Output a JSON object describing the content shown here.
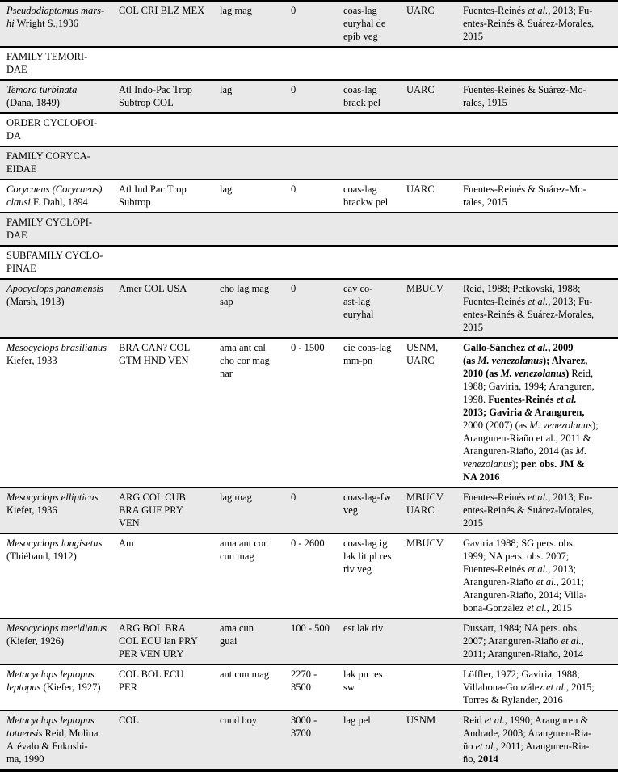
{
  "shade_color": "#e9e9e9",
  "border_color": "#000000",
  "table": {
    "rows": [
      {
        "kind": "species",
        "shaded": true,
        "species": [
          [
            {
              "t": "Pseudodiaptomus mars-",
              "s": "i"
            }
          ],
          [
            {
              "t": "hi",
              "s": "i"
            },
            {
              "t": " Wright S.,1936"
            }
          ]
        ],
        "distribution": [
          [
            {
              "t": "COL CRI BLZ MEX"
            }
          ]
        ],
        "codes": [
          [
            {
              "t": "lag mag"
            }
          ]
        ],
        "depth": [
          [
            {
              "t": "0"
            }
          ]
        ],
        "habitat": [
          [
            {
              "t": "coas-lag"
            }
          ],
          [
            {
              "t": "euryhal de"
            }
          ],
          [
            {
              "t": "epib veg"
            }
          ]
        ],
        "museum": [
          [
            {
              "t": "UARC"
            }
          ]
        ],
        "references": [
          [
            {
              "t": "Fuentes-Reinés "
            },
            {
              "t": "et al.",
              "s": "i"
            },
            {
              "t": ", 2013; Fu-"
            }
          ],
          [
            {
              "t": "entes-Reinés & Suárez-Morales,"
            }
          ],
          [
            {
              "t": "2015"
            }
          ]
        ]
      },
      {
        "kind": "group",
        "shaded": false,
        "label": [
          [
            {
              "t": "FAMILY TEMORI-"
            }
          ],
          [
            {
              "t": "DAE"
            }
          ]
        ]
      },
      {
        "kind": "species",
        "shaded": true,
        "species": [
          [
            {
              "t": "Temora turbinata",
              "s": "i"
            }
          ],
          [
            {
              "t": "(Dana, 1849)"
            }
          ]
        ],
        "distribution": [
          [
            {
              "t": "Atl Indo-Pac Trop"
            }
          ],
          [
            {
              "t": "Subtrop COL"
            }
          ]
        ],
        "codes": [
          [
            {
              "t": "lag"
            }
          ]
        ],
        "depth": [
          [
            {
              "t": "0"
            }
          ]
        ],
        "habitat": [
          [
            {
              "t": "coas-lag"
            }
          ],
          [
            {
              "t": "brack pel"
            }
          ]
        ],
        "museum": [
          [
            {
              "t": "UARC"
            }
          ]
        ],
        "references": [
          [
            {
              "t": "Fuentes-Reinés & Suárez-Mo-"
            }
          ],
          [
            {
              "t": "rales, 1915"
            }
          ]
        ]
      },
      {
        "kind": "group",
        "shaded": false,
        "label": [
          [
            {
              "t": "ORDER CYCLOPOI-"
            }
          ],
          [
            {
              "t": "DA"
            }
          ]
        ]
      },
      {
        "kind": "group",
        "shaded": true,
        "label": [
          [
            {
              "t": "FAMILY CORYCA-"
            }
          ],
          [
            {
              "t": "EIDAE"
            }
          ]
        ]
      },
      {
        "kind": "species",
        "shaded": false,
        "species": [
          [
            {
              "t": "Corycaeus (Corycaeus)",
              "s": "i"
            }
          ],
          [
            {
              "t": "clausi",
              "s": "i"
            },
            {
              "t": " F. Dahl, 1894"
            }
          ]
        ],
        "distribution": [
          [
            {
              "t": "Atl Ind Pac Trop"
            }
          ],
          [
            {
              "t": "Subtrop"
            }
          ]
        ],
        "codes": [
          [
            {
              "t": "lag"
            }
          ]
        ],
        "depth": [
          [
            {
              "t": "0"
            }
          ]
        ],
        "habitat": [
          [
            {
              "t": "coas-lag"
            }
          ],
          [
            {
              "t": "brackw pel"
            }
          ]
        ],
        "museum": [
          [
            {
              "t": "UARC"
            }
          ]
        ],
        "references": [
          [
            {
              "t": "Fuentes-Reinés & Suárez-Mo-"
            }
          ],
          [
            {
              "t": "rales, 2015"
            }
          ]
        ]
      },
      {
        "kind": "group",
        "shaded": true,
        "label": [
          [
            {
              "t": "FAMILY CYCLOPI-"
            }
          ],
          [
            {
              "t": "DAE"
            }
          ]
        ]
      },
      {
        "kind": "group",
        "shaded": false,
        "label": [
          [
            {
              "t": "SUBFAMILY CYCLO-"
            }
          ],
          [
            {
              "t": "PINAE"
            }
          ]
        ]
      },
      {
        "kind": "species",
        "shaded": true,
        "species": [
          [
            {
              "t": "Apocyclops panamensis",
              "s": "i"
            }
          ],
          [
            {
              "t": "(Marsh, 1913)"
            }
          ]
        ],
        "distribution": [
          [
            {
              "t": "Amer COL USA"
            }
          ]
        ],
        "codes": [
          [
            {
              "t": "cho lag mag"
            }
          ],
          [
            {
              "t": "sap"
            }
          ]
        ],
        "depth": [
          [
            {
              "t": "0"
            }
          ]
        ],
        "habitat": [
          [
            {
              "t": "cav co-"
            }
          ],
          [
            {
              "t": "ast-lag"
            }
          ],
          [
            {
              "t": "euryhal"
            }
          ]
        ],
        "museum": [
          [
            {
              "t": "MBUCV"
            }
          ]
        ],
        "references": [
          [
            {
              "t": "Reid, 1988; Petkovski, 1988;"
            }
          ],
          [
            {
              "t": "Fuentes-Reinés "
            },
            {
              "t": "et al.",
              "s": "i"
            },
            {
              "t": ", 2013; Fu-"
            }
          ],
          [
            {
              "t": "entes-Reinés & Suárez-Morales,"
            }
          ],
          [
            {
              "t": "2015"
            }
          ]
        ]
      },
      {
        "kind": "species",
        "shaded": false,
        "species": [
          [
            {
              "t": "Mesocyclops brasilianus",
              "s": "i"
            }
          ],
          [
            {
              "t": "Kiefer, 1933"
            }
          ]
        ],
        "distribution": [
          [
            {
              "t": "BRA CAN? COL"
            }
          ],
          [
            {
              "t": "GTM HND VEN"
            }
          ]
        ],
        "codes": [
          [
            {
              "t": "ama ant cal"
            }
          ],
          [
            {
              "t": "cho cor mag"
            }
          ],
          [
            {
              "t": "nar"
            }
          ]
        ],
        "depth": [
          [
            {
              "t": "0 - 1500"
            }
          ]
        ],
        "habitat": [
          [
            {
              "t": "cie coas-lag"
            }
          ],
          [
            {
              "t": "mm-pn"
            }
          ]
        ],
        "museum": [
          [
            {
              "t": "USNM,"
            }
          ],
          [
            {
              "t": "UARC"
            }
          ]
        ],
        "references": [
          [
            {
              "t": "Gallo-Sánchez ",
              "s": "b"
            },
            {
              "t": "et al.",
              "s": "bi"
            },
            {
              "t": ", 2009",
              "s": "b"
            }
          ],
          [
            {
              "t": "(as ",
              "s": "b"
            },
            {
              "t": "M. venezolanus",
              "s": "bi"
            },
            {
              "t": "); Alvarez,",
              "s": "b"
            }
          ],
          [
            {
              "t": "2010 (as ",
              "s": "b"
            },
            {
              "t": "M. venezolanus",
              "s": "bi"
            },
            {
              "t": ") ",
              "s": "b"
            },
            {
              "t": "Reid,"
            }
          ],
          [
            {
              "t": "1988; Gaviria, 1994; Aranguren,"
            }
          ],
          [
            {
              "t": "1998. "
            },
            {
              "t": "Fuentes-Reinés ",
              "s": "b"
            },
            {
              "t": "et al.",
              "s": "bi"
            }
          ],
          [
            {
              "t": "2013; Gaviria ",
              "s": "b"
            },
            {
              "t": "&",
              "s": "bi"
            },
            {
              "t": " Aranguren,",
              "s": "b"
            }
          ],
          [
            {
              "t": "2000 (2007) (as "
            },
            {
              "t": "M. venezolanus",
              "s": "i"
            },
            {
              "t": ");"
            }
          ],
          [
            {
              "t": "Aranguren-Riaño et al., 2011 &"
            }
          ],
          [
            {
              "t": "Aranguren-Riaño, 2014 (as "
            },
            {
              "t": "M.",
              "s": "i"
            }
          ],
          [
            {
              "t": "venezolanus",
              "s": "i"
            },
            {
              "t": ");  "
            },
            {
              "t": "per. obs. JM &",
              "s": "b"
            }
          ],
          [
            {
              "t": "NA 2016",
              "s": "b"
            }
          ]
        ]
      },
      {
        "kind": "species",
        "shaded": true,
        "species": [
          [
            {
              "t": "Mesocyclops ellipticus",
              "s": "i"
            }
          ],
          [
            {
              "t": "Kiefer, 1936"
            }
          ]
        ],
        "distribution": [
          [
            {
              "t": "ARG COL CUB"
            }
          ],
          [
            {
              "t": "BRA GUF PRY"
            }
          ],
          [
            {
              "t": "VEN"
            }
          ]
        ],
        "codes": [
          [
            {
              "t": "lag mag"
            }
          ]
        ],
        "depth": [
          [
            {
              "t": "0"
            }
          ]
        ],
        "habitat": [
          [
            {
              "t": "coas-lag-fw"
            }
          ],
          [
            {
              "t": "veg"
            }
          ]
        ],
        "museum": [
          [
            {
              "t": "MBUCV"
            }
          ],
          [
            {
              "t": "UARC"
            }
          ]
        ],
        "references": [
          [
            {
              "t": "Fuentes-Reinés "
            },
            {
              "t": "et al.",
              "s": "i"
            },
            {
              "t": ", 2013; Fu-"
            }
          ],
          [
            {
              "t": "entes-Reinés & Suárez-Morales,"
            }
          ],
          [
            {
              "t": "2015"
            }
          ]
        ]
      },
      {
        "kind": "species",
        "shaded": false,
        "species": [
          [
            {
              "t": "Mesocyclops longisetus",
              "s": "i"
            }
          ],
          [
            {
              "t": "(Thiébaud, 1912)"
            }
          ]
        ],
        "distribution": [
          [
            {
              "t": "Am"
            }
          ]
        ],
        "codes": [
          [
            {
              "t": "ama ant cor"
            }
          ],
          [
            {
              "t": "cun mag"
            }
          ]
        ],
        "depth": [
          [
            {
              "t": "0 - 2600"
            }
          ]
        ],
        "habitat": [
          [
            {
              "t": "coas-lag ig"
            }
          ],
          [
            {
              "t": "lak lit pl res"
            }
          ],
          [
            {
              "t": "riv veg"
            }
          ]
        ],
        "museum": [
          [
            {
              "t": "MBUCV"
            }
          ]
        ],
        "references": [
          [
            {
              "t": "Gaviria 1988; SG pers. obs."
            }
          ],
          [
            {
              "t": "1999; NA pers. obs. 2007;"
            }
          ],
          [
            {
              "t": "Fuentes-Reinés "
            },
            {
              "t": "et al.",
              "s": "i"
            },
            {
              "t": ", 2013;"
            }
          ],
          [
            {
              "t": "Aranguren-Riaño "
            },
            {
              "t": "et al.",
              "s": "i"
            },
            {
              "t": ", 2011;"
            }
          ],
          [
            {
              "t": "Aranguren-Riaño, 2014; Villa-"
            }
          ],
          [
            {
              "t": "bona-González "
            },
            {
              "t": "et al.",
              "s": "i"
            },
            {
              "t": ", 2015"
            }
          ]
        ]
      },
      {
        "kind": "species",
        "shaded": true,
        "species": [
          [
            {
              "t": "Mesocyclops meridianus",
              "s": "i"
            }
          ],
          [
            {
              "t": "(Kiefer, 1926)"
            }
          ]
        ],
        "distribution": [
          [
            {
              "t": "ARG BOL BRA"
            }
          ],
          [
            {
              "t": "COL ECU lan PRY"
            }
          ],
          [
            {
              "t": "PER VEN URY"
            }
          ]
        ],
        "codes": [
          [
            {
              "t": "ama cun"
            }
          ],
          [
            {
              "t": "guai"
            }
          ]
        ],
        "depth": [
          [
            {
              "t": "100 - 500"
            }
          ]
        ],
        "habitat": [
          [
            {
              "t": "est lak riv"
            }
          ]
        ],
        "museum": [],
        "references": [
          [
            {
              "t": "Dussart, 1984;  NA pers. obs."
            }
          ],
          [
            {
              "t": "2007; Aranguren-Riaño "
            },
            {
              "t": "et al.",
              "s": "i"
            },
            {
              "t": ","
            }
          ],
          [
            {
              "t": "2011; Aranguren-Riaño, 2014"
            }
          ]
        ]
      },
      {
        "kind": "species",
        "shaded": false,
        "species": [
          [
            {
              "t": "Metacyclops leptopus",
              "s": "i"
            }
          ],
          [
            {
              "t": "leptopus",
              "s": "i"
            },
            {
              "t": " (Kiefer, 1927)"
            }
          ]
        ],
        "distribution": [
          [
            {
              "t": "COL BOL ECU"
            }
          ],
          [
            {
              "t": "PER"
            }
          ]
        ],
        "codes": [
          [
            {
              "t": "ant cun mag"
            }
          ]
        ],
        "depth": [
          [
            {
              "t": "2270 -"
            }
          ],
          [
            {
              "t": "3500"
            }
          ]
        ],
        "habitat": [
          [
            {
              "t": "lak pn res"
            }
          ],
          [
            {
              "t": "sw"
            }
          ]
        ],
        "museum": [],
        "references": [
          [
            {
              "t": "Löffler, 1972; Gaviria, 1988;"
            }
          ],
          [
            {
              "t": "Villabona-González "
            },
            {
              "t": "et al.",
              "s": "i"
            },
            {
              "t": ", 2015;"
            }
          ],
          [
            {
              "t": "Torres & Rylander, 2016"
            }
          ]
        ]
      },
      {
        "kind": "species",
        "shaded": true,
        "species": [
          [
            {
              "t": "Metacyclops leptopus",
              "s": "i"
            }
          ],
          [
            {
              "t": "totaensis",
              "s": "i"
            },
            {
              "t": " Reid, Molina"
            }
          ],
          [
            {
              "t": "Arévalo & Fukushi-"
            }
          ],
          [
            {
              "t": "ma, 1990"
            }
          ]
        ],
        "distribution": [
          [
            {
              "t": "COL"
            }
          ]
        ],
        "codes": [
          [
            {
              "t": "cund boy"
            }
          ]
        ],
        "depth": [
          [
            {
              "t": "3000 -"
            }
          ],
          [
            {
              "t": "3700"
            }
          ]
        ],
        "habitat": [
          [
            {
              "t": "lag pel"
            }
          ]
        ],
        "museum": [
          [
            {
              "t": "USNM"
            }
          ]
        ],
        "references": [
          [
            {
              "t": "Reid "
            },
            {
              "t": "et al.",
              "s": "i"
            },
            {
              "t": ", 1990; Aranguren &"
            }
          ],
          [
            {
              "t": "Andrade, 2003; Aranguren-Ria-"
            }
          ],
          [
            {
              "t": "ño "
            },
            {
              "t": "et al.",
              "s": "i"
            },
            {
              "t": ", 2011; Aranguren-Ria-"
            }
          ],
          [
            {
              "t": "ño, "
            },
            {
              "t": "2014",
              "s": "b"
            }
          ]
        ]
      }
    ]
  }
}
